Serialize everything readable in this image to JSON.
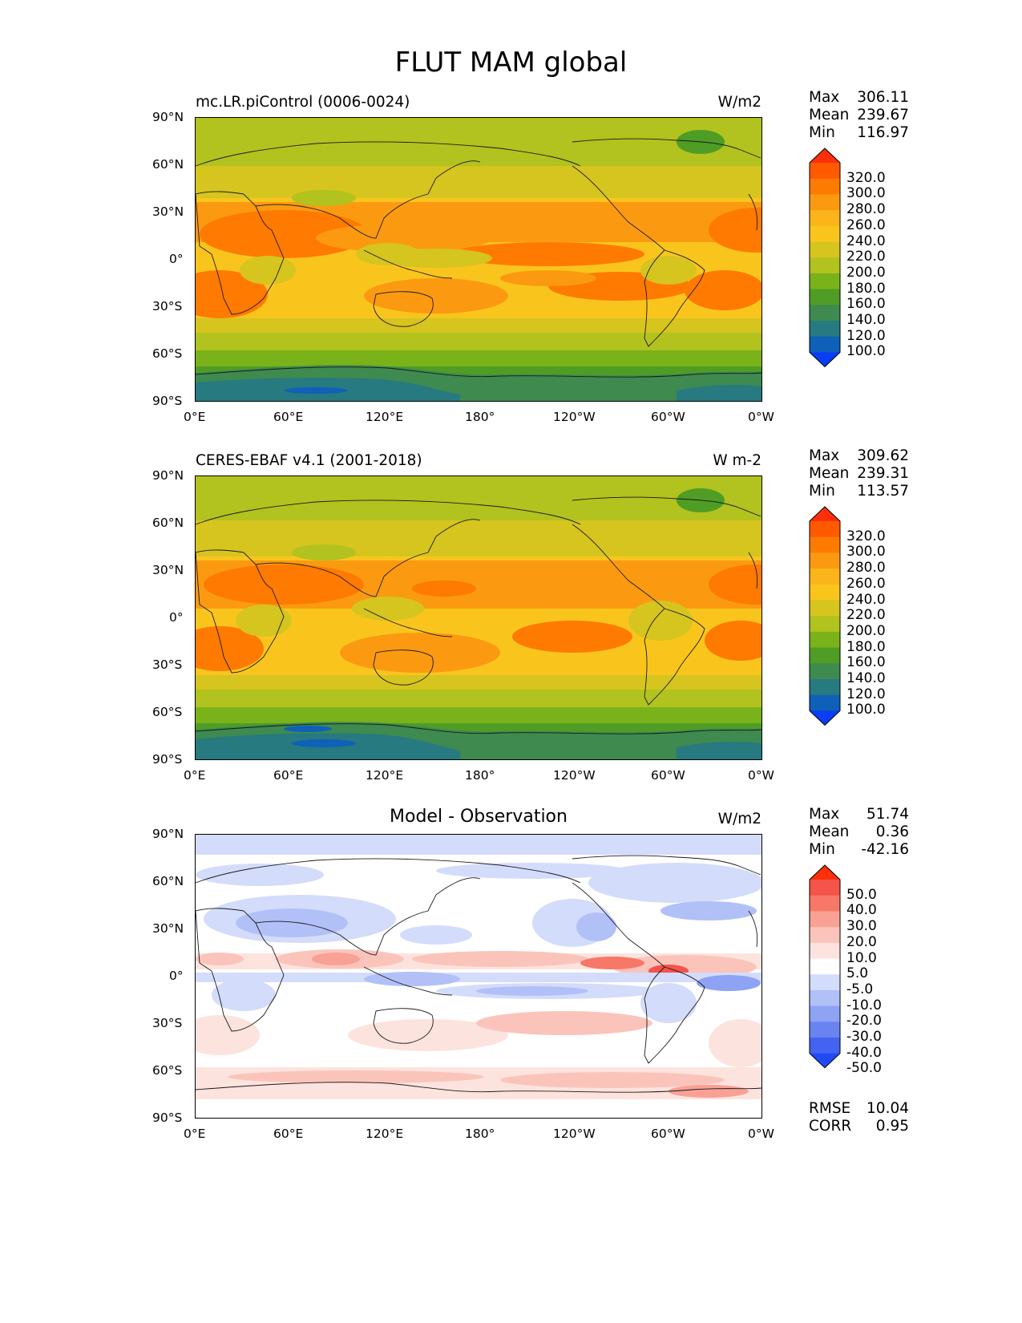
{
  "title": "FLUT MAM global",
  "lat_ticks": [
    "90°N",
    "60°N",
    "30°N",
    "0°",
    "30°S",
    "60°S",
    "90°S"
  ],
  "lon_ticks": [
    "0°E",
    "60°E",
    "120°E",
    "180°",
    "120°W",
    "60°W",
    "0°W"
  ],
  "abs_levels": [
    "320.0",
    "300.0",
    "280.0",
    "260.0",
    "240.0",
    "220.0",
    "200.0",
    "180.0",
    "160.0",
    "140.0",
    "120.0",
    "100.0"
  ],
  "abs_colors": [
    "#ff2f0a",
    "#ff5a00",
    "#ff7a00",
    "#fb9a10",
    "#fbb41a",
    "#f9c51d",
    "#d6c41f",
    "#b2c21e",
    "#7ab21a",
    "#4f9d25",
    "#3e8a4f",
    "#267a80",
    "#0f60b8",
    "#0a3ef5"
  ],
  "diff_levels": [
    "50.0",
    "40.0",
    "30.0",
    "20.0",
    "10.0",
    "5.0",
    "-5.0",
    "-10.0",
    "-20.0",
    "-30.0",
    "-40.0",
    "-50.0"
  ],
  "diff_colors": [
    "#ff2f0a",
    "#f4544a",
    "#f77868",
    "#f9a195",
    "#fbc4bb",
    "#fde3de",
    "#ffffff",
    "#d4dcfb",
    "#b2c0f8",
    "#8ea3f4",
    "#6984f1",
    "#4364f1",
    "#1f4af5"
  ],
  "panels": [
    {
      "title": "mc.LR.piControl (0006-0024)",
      "units": "W/m2",
      "stats": {
        "max_label": "Max",
        "max": "306.11",
        "mean_label": "Mean",
        "mean": "239.67",
        "min_label": "Min",
        "min": "116.97"
      }
    },
    {
      "title": "CERES-EBAF v4.1 (2001-2018)",
      "units": "W m-2",
      "stats": {
        "max_label": "Max",
        "max": "309.62",
        "mean_label": "Mean",
        "mean": "239.31",
        "min_label": "Min",
        "min": "113.57"
      }
    },
    {
      "title": "Model - Observation",
      "units": "W/m2",
      "stats": {
        "max_label": "Max",
        "max": "51.74",
        "mean_label": "Mean",
        "mean": "0.36",
        "min_label": "Min",
        "min": "-42.16"
      },
      "rmse_label": "RMSE",
      "rmse": "10.04",
      "corr_label": "CORR",
      "corr": "0.95"
    }
  ]
}
